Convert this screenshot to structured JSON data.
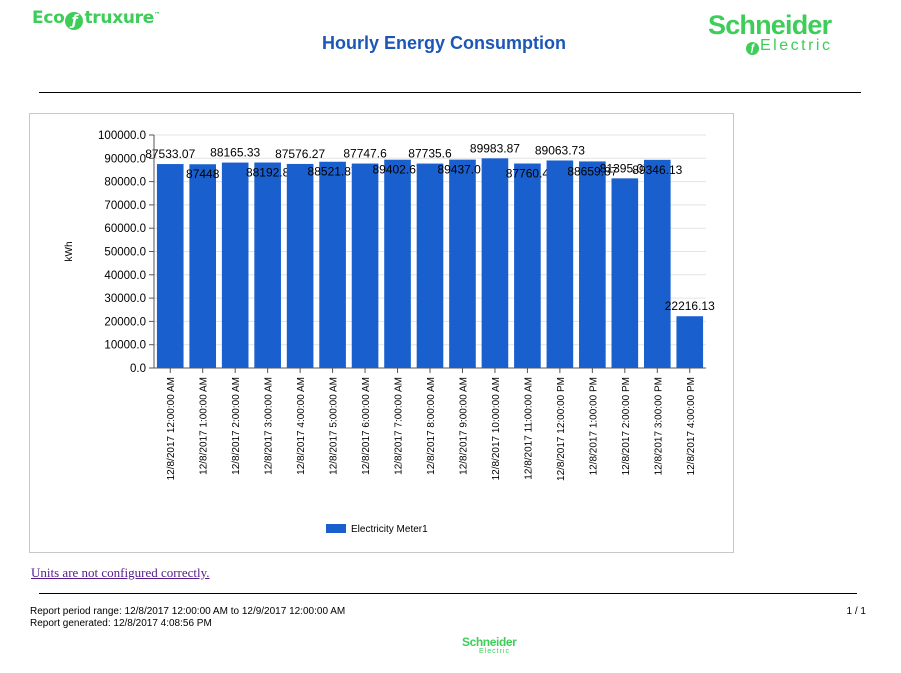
{
  "header": {
    "eco_logo": {
      "pre": "Eco",
      "post": "truxure"
    },
    "title": "Hourly Energy Consumption",
    "brand_logo": {
      "name": "Schneider",
      "sub": "Electric"
    }
  },
  "colors": {
    "bar": "#1a5fce",
    "brand_green": "#3dcd58",
    "title_blue": "#1c57b7"
  },
  "chart_data": {
    "type": "bar",
    "ylabel": "kWh",
    "ylim": [
      0,
      100000
    ],
    "yticks": [
      "0.0",
      "10000.0",
      "20000.0",
      "30000.0",
      "40000.0",
      "50000.0",
      "60000.0",
      "70000.0",
      "80000.0",
      "90000.0",
      "100000.0"
    ],
    "categories": [
      "12/8/2017 12:00:00 AM",
      "12/8/2017 1:00:00 AM",
      "12/8/2017 2:00:00 AM",
      "12/8/2017 3:00:00 AM",
      "12/8/2017 4:00:00 AM",
      "12/8/2017 5:00:00 AM",
      "12/8/2017 6:00:00 AM",
      "12/8/2017 7:00:00 AM",
      "12/8/2017 8:00:00 AM",
      "12/8/2017 9:00:00 AM",
      "12/8/2017 10:00:00 AM",
      "12/8/2017 11:00:00 AM",
      "12/8/2017 12:00:00 PM",
      "12/8/2017 1:00:00 PM",
      "12/8/2017 2:00:00 PM",
      "12/8/2017 3:00:00 PM",
      "12/8/2017 4:00:00 PM"
    ],
    "series": [
      {
        "name": "Electricity Meter1",
        "values": [
          87533.07,
          87448,
          88165.33,
          88192.8,
          87576.27,
          88521.87,
          87747.6,
          89402.67,
          87735.6,
          89437.07,
          89983.87,
          87760.4,
          89063.73,
          88659.87,
          81395.07,
          89346.13,
          22216.13
        ],
        "labels": [
          "87533.07",
          "87448",
          "88165.33",
          "88192.8",
          "87576.27",
          "88521.87",
          "87747.6",
          "89402.67",
          "87735.6",
          "89437.07",
          "89983.87",
          "87760.4",
          "89063.73",
          "88659.87",
          "81395.07",
          "89346.13",
          "22216.13"
        ]
      }
    ],
    "grid": true,
    "legend": "bottom-center"
  },
  "notice": {
    "units_link": "Units are not configured correctly."
  },
  "footer": {
    "period": "Report period range: 12/8/2017 12:00:00 AM to 12/9/2017 12:00:00 AM",
    "generated": "Report generated: 12/8/2017 4:08:56 PM",
    "page": "1 / 1"
  }
}
